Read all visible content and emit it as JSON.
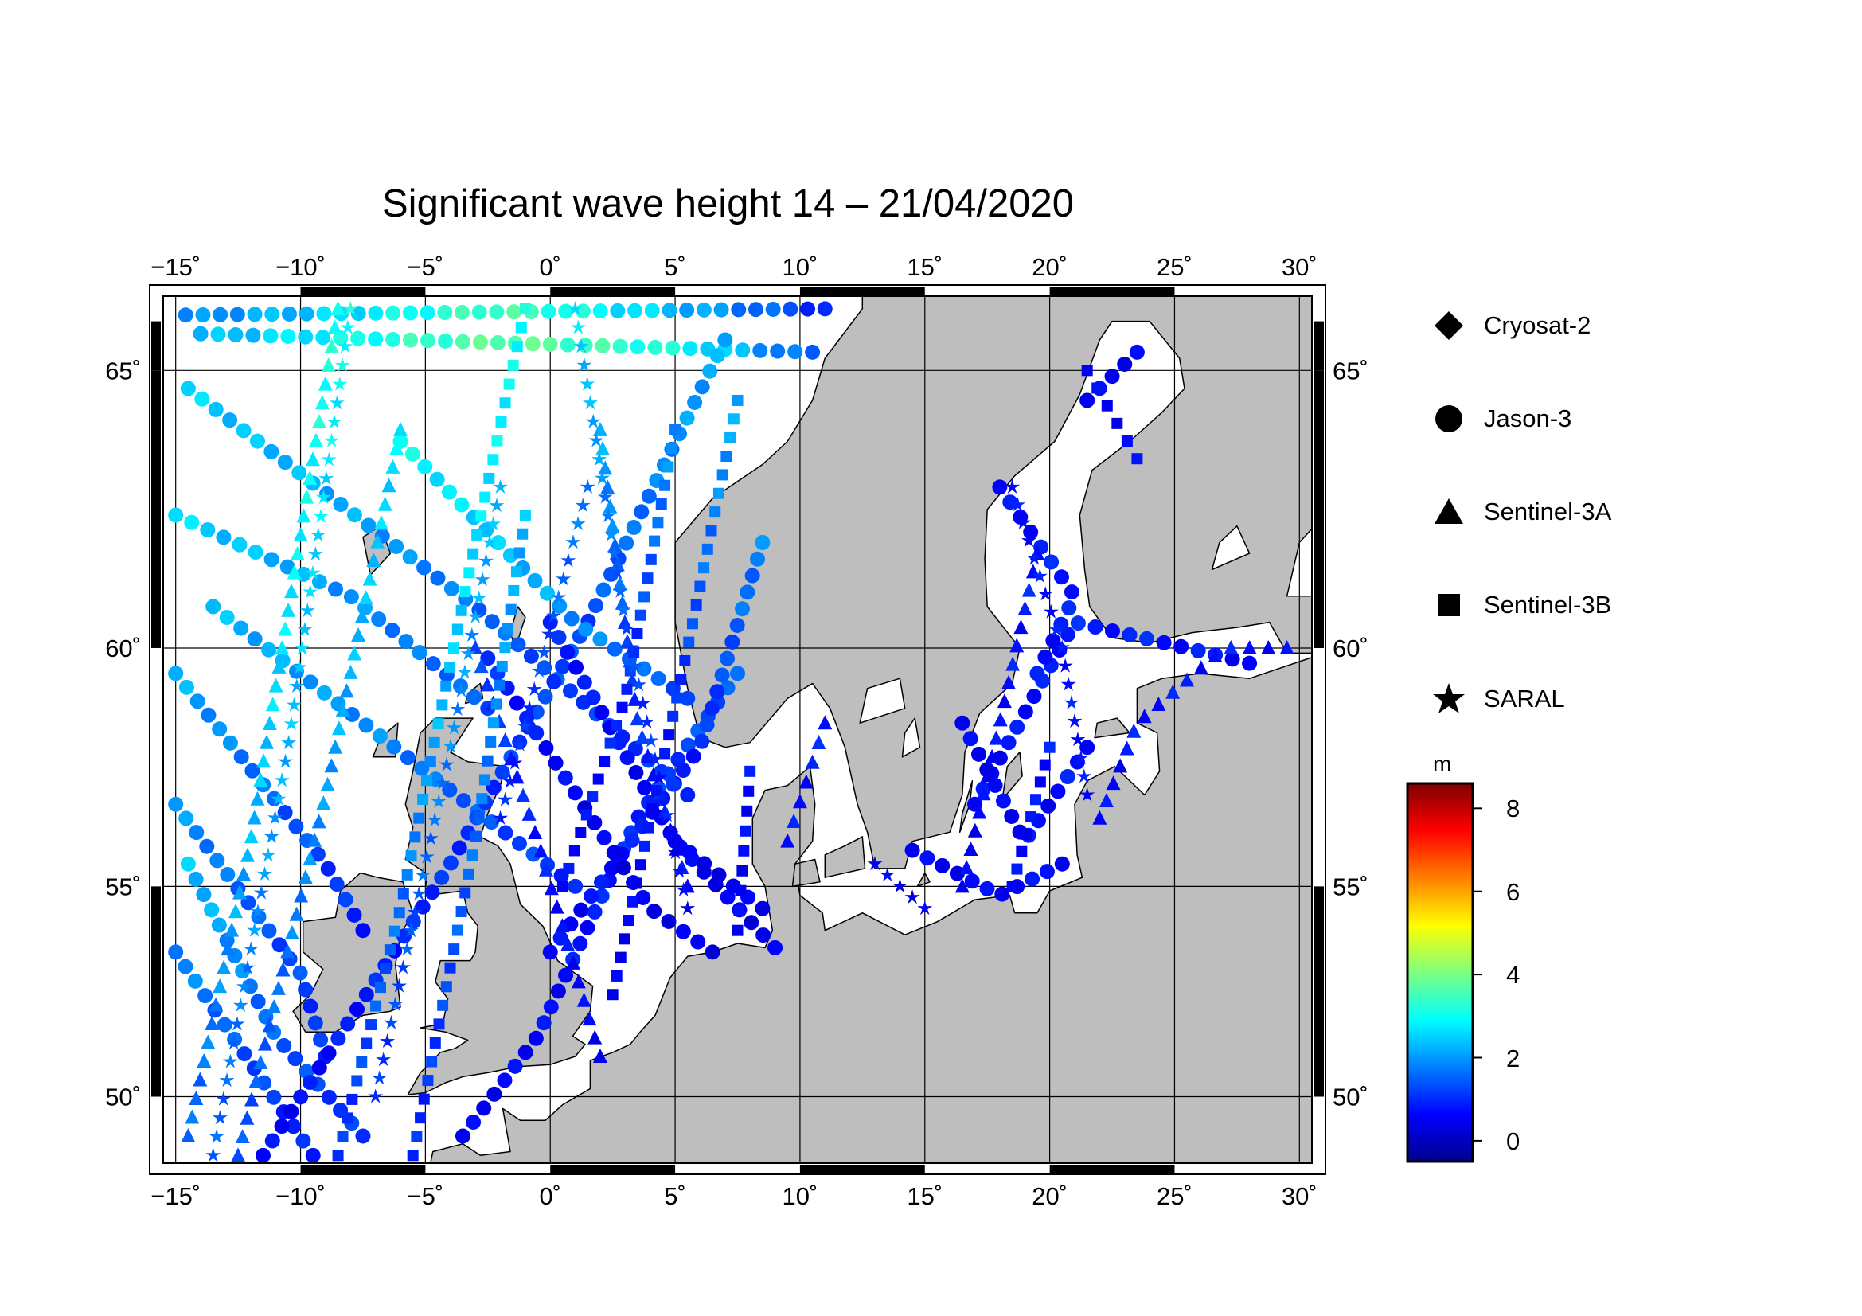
{
  "title": "Significant wave height 14 – 21/04/2020",
  "map": {
    "lon_range": [
      -15.5,
      30.5
    ],
    "lat_range": [
      48.3,
      66.2
    ],
    "lon_ticks": [
      -15,
      -10,
      -5,
      0,
      5,
      10,
      15,
      20,
      25,
      30
    ],
    "lat_ticks": [
      50,
      55,
      60,
      65
    ],
    "lon_labels": [
      "−15˚",
      "−10˚",
      "−5˚",
      "0˚",
      "5˚",
      "10˚",
      "15˚",
      "20˚",
      "25˚",
      "30˚"
    ],
    "lat_labels": [
      "50˚",
      "55˚",
      "60˚",
      "65˚"
    ],
    "grid": true,
    "land_color": "#bebebe",
    "sea_color": "#ffffff"
  },
  "legend": {
    "items": [
      {
        "label": "Cryosat-2",
        "symbol": "diamond"
      },
      {
        "label": "Jason-3",
        "symbol": "circle"
      },
      {
        "label": "Sentinel-3A",
        "symbol": "triangle"
      },
      {
        "label": "Sentinel-3B",
        "symbol": "square"
      },
      {
        "label": "SARAL",
        "symbol": "star"
      }
    ]
  },
  "colorbar": {
    "unit": "m",
    "min": -0.5,
    "max": 8.6,
    "tick_values": [
      0,
      2,
      4,
      6,
      8
    ],
    "tick_labels": [
      "0",
      "2",
      "4",
      "6",
      "8"
    ],
    "colors": [
      "#00008f",
      "#0000ff",
      "#007fff",
      "#00ffff",
      "#7fff7f",
      "#ffff00",
      "#ff7f00",
      "#ff0000",
      "#7f0000"
    ]
  },
  "tracks": [
    {
      "sat": "Jason-3",
      "pts": [
        [
          -14.6,
          65.9
        ],
        [
          11.0,
          66.0
        ]
      ],
      "hs": [
        1.8,
        2.6,
        3.6,
        2.4,
        1.0
      ]
    },
    {
      "sat": "Jason-3",
      "pts": [
        [
          -14.0,
          65.6
        ],
        [
          10.5,
          65.3
        ]
      ],
      "hs": [
        2.2,
        3.0,
        3.8,
        3.2,
        1.4
      ]
    },
    {
      "sat": "Jason-3",
      "pts": [
        [
          -14.5,
          64.7
        ],
        [
          -3.0,
          60.8
        ],
        [
          5.5,
          57.0
        ]
      ],
      "hs": [
        2.5,
        2.1,
        1.4,
        0.9
      ]
    },
    {
      "sat": "Jason-3",
      "pts": [
        [
          -13.5,
          60.8
        ],
        [
          -5.0,
          57.5
        ],
        [
          1.0,
          55.0
        ]
      ],
      "hs": [
        2.3,
        1.8,
        1.0
      ]
    },
    {
      "sat": "Jason-3",
      "pts": [
        [
          -7.5,
          49.0
        ],
        [
          -11.0,
          51.5
        ],
        [
          -14.5,
          55.5
        ]
      ],
      "hs": [
        1.0,
        1.6,
        2.4
      ]
    },
    {
      "sat": "Jason-3",
      "pts": [
        [
          -9.5,
          48.5
        ],
        [
          -15.0,
          53.5
        ]
      ],
      "hs": [
        0.8,
        1.9
      ]
    },
    {
      "sat": "Jason-3",
      "pts": [
        [
          -15.0,
          59.5
        ],
        [
          -9.0,
          55.5
        ],
        [
          -7.5,
          54.0
        ]
      ],
      "hs": [
        2.2,
        1.5,
        0.9
      ]
    },
    {
      "sat": "Jason-3",
      "pts": [
        [
          -15.0,
          56.8
        ],
        [
          -10.0,
          53.0
        ],
        [
          -9.0,
          51.0
        ]
      ],
      "hs": [
        2.0,
        1.4,
        1.0
      ]
    },
    {
      "sat": "Jason-3",
      "pts": [
        [
          -11.5,
          48.5
        ],
        [
          -4.0,
          55.5
        ],
        [
          1.5,
          60.5
        ],
        [
          7.0,
          65.5
        ]
      ],
      "hs": [
        0.6,
        1.0,
        1.3,
        2.2
      ]
    },
    {
      "sat": "Jason-3",
      "pts": [
        [
          -3.5,
          49.0
        ],
        [
          -0.5,
          51.5
        ],
        [
          3.5,
          56.5
        ],
        [
          7.5,
          59.5
        ]
      ],
      "hs": [
        0.5,
        0.7,
        1.0,
        1.5
      ]
    },
    {
      "sat": "Jason-3",
      "pts": [
        [
          0.0,
          53.5
        ],
        [
          6.0,
          58.0
        ],
        [
          8.5,
          62.0
        ]
      ],
      "hs": [
        0.6,
        0.9,
        1.8
      ]
    },
    {
      "sat": "Jason-3",
      "pts": [
        [
          0.0,
          60.5
        ],
        [
          5.0,
          56.0
        ],
        [
          9.0,
          53.6
        ]
      ],
      "hs": [
        0.9,
        0.6,
        0.4
      ]
    },
    {
      "sat": "Jason-3",
      "pts": [
        [
          -2.5,
          59.8
        ],
        [
          4.0,
          54.5
        ],
        [
          6.5,
          53.5
        ]
      ],
      "hs": [
        1.0,
        0.5,
        0.4
      ]
    },
    {
      "sat": "Jason-3",
      "pts": [
        [
          5.0,
          56.0
        ],
        [
          8.5,
          54.5
        ]
      ],
      "hs": [
        0.4,
        0.5
      ]
    },
    {
      "sat": "Jason-3",
      "pts": [
        [
          -15.0,
          62.5
        ],
        [
          -8.0,
          61.0
        ],
        [
          -2.5,
          58.8
        ]
      ],
      "hs": [
        2.6,
        2.0,
        1.4
      ]
    },
    {
      "sat": "Jason-3",
      "pts": [
        [
          -6.0,
          63.8
        ],
        [
          1.0,
          60.5
        ],
        [
          5.5,
          59.0
        ]
      ],
      "hs": [
        3.0,
        2.2,
        1.3
      ]
    },
    {
      "sat": "Jason-3",
      "pts": [
        [
          14.5,
          55.8
        ],
        [
          18.0,
          54.8
        ],
        [
          20.5,
          55.5
        ]
      ],
      "hs": [
        0.5,
        0.6,
        0.7
      ]
    },
    {
      "sat": "Jason-3",
      "pts": [
        [
          17.0,
          56.8
        ],
        [
          21.0,
          60.5
        ],
        [
          25.5,
          60.0
        ],
        [
          28.0,
          59.7
        ]
      ],
      "hs": [
        0.6,
        0.8,
        0.9,
        0.7
      ]
    },
    {
      "sat": "Jason-3",
      "pts": [
        [
          16.5,
          58.5
        ],
        [
          19.0,
          56.0
        ],
        [
          21.5,
          58.0
        ]
      ],
      "hs": [
        0.5,
        0.6,
        0.8
      ]
    },
    {
      "sat": "Jason-3",
      "pts": [
        [
          18.0,
          63.0
        ],
        [
          21.0,
          61.0
        ],
        [
          19.5,
          59.5
        ]
      ],
      "hs": [
        0.6,
        0.9,
        0.7
      ]
    },
    {
      "sat": "Jason-3",
      "pts": [
        [
          21.5,
          64.5
        ],
        [
          23.5,
          65.3
        ]
      ],
      "hs": [
        0.5,
        0.6
      ]
    },
    {
      "sat": "Sentinel-3A",
      "pts": [
        [
          -14.5,
          49.0
        ],
        [
          -12.0,
          56.0
        ],
        [
          -9.5,
          63.5
        ],
        [
          -8.5,
          66.0
        ]
      ],
      "hs": [
        1.5,
        2.2,
        2.8,
        3.2
      ]
    },
    {
      "sat": "Sentinel-3A",
      "pts": [
        [
          -12.5,
          48.5
        ],
        [
          -9.0,
          57.0
        ],
        [
          -6.0,
          64.0
        ]
      ],
      "hs": [
        1.3,
        2.0,
        2.7
      ]
    },
    {
      "sat": "Sentinel-3A",
      "pts": [
        [
          -3.0,
          60.0
        ],
        [
          -0.5,
          56.0
        ],
        [
          2.0,
          51.0
        ]
      ],
      "hs": [
        1.2,
        0.8,
        0.5
      ]
    },
    {
      "sat": "Sentinel-3A",
      "pts": [
        [
          2.0,
          64.0
        ],
        [
          3.5,
          58.5
        ],
        [
          5.5,
          55.0
        ]
      ],
      "hs": [
        2.2,
        1.2,
        0.6
      ]
    },
    {
      "sat": "Sentinel-3A",
      "pts": [
        [
          9.5,
          56.0
        ],
        [
          11.0,
          58.5
        ]
      ],
      "hs": [
        0.7,
        0.9
      ]
    },
    {
      "sat": "Sentinel-3A",
      "pts": [
        [
          16.5,
          55.0
        ],
        [
          18.0,
          58.5
        ],
        [
          19.5,
          61.8
        ]
      ],
      "hs": [
        0.5,
        0.7,
        0.9
      ]
    },
    {
      "sat": "Sentinel-3A",
      "pts": [
        [
          22.0,
          56.5
        ],
        [
          23.5,
          58.5
        ],
        [
          27.0,
          60.0
        ],
        [
          29.5,
          60.0
        ]
      ],
      "hs": [
        0.6,
        0.8,
        0.8,
        0.7
      ]
    },
    {
      "sat": "Sentinel-3B",
      "pts": [
        [
          -8.5,
          48.5
        ],
        [
          -6.0,
          54.5
        ],
        [
          -3.0,
          62.0
        ],
        [
          -1.0,
          66.0
        ]
      ],
      "hs": [
        1.0,
        1.7,
        2.6,
        3.0
      ]
    },
    {
      "sat": "Sentinel-3B",
      "pts": [
        [
          -5.5,
          48.5
        ],
        [
          -3.0,
          56.0
        ],
        [
          -1.0,
          62.5
        ]
      ],
      "hs": [
        0.9,
        1.6,
        2.3
      ]
    },
    {
      "sat": "Sentinel-3B",
      "pts": [
        [
          0.5,
          55.0
        ],
        [
          3.0,
          59.0
        ],
        [
          5.0,
          64.0
        ]
      ],
      "hs": [
        0.6,
        1.0,
        2.0
      ]
    },
    {
      "sat": "Sentinel-3B",
      "pts": [
        [
          2.5,
          52.5
        ],
        [
          5.5,
          60.0
        ],
        [
          7.5,
          64.5
        ]
      ],
      "hs": [
        0.4,
        1.0,
        2.2
      ]
    },
    {
      "sat": "Sentinel-3B",
      "pts": [
        [
          7.5,
          54.0
        ],
        [
          8.0,
          57.5
        ]
      ],
      "hs": [
        0.5,
        0.7
      ]
    },
    {
      "sat": "Sentinel-3B",
      "pts": [
        [
          21.5,
          65.0
        ],
        [
          23.5,
          63.5
        ]
      ],
      "hs": [
        0.5,
        0.6
      ]
    },
    {
      "sat": "Sentinel-3B",
      "pts": [
        [
          18.5,
          55.0
        ],
        [
          20.0,
          58.0
        ]
      ],
      "hs": [
        0.6,
        0.8
      ]
    },
    {
      "sat": "SARAL",
      "pts": [
        [
          -13.5,
          48.5
        ],
        [
          -10.5,
          58.0
        ],
        [
          -8.0,
          66.0
        ]
      ],
      "hs": [
        1.4,
        2.3,
        3.0
      ]
    },
    {
      "sat": "SARAL",
      "pts": [
        [
          -7.0,
          50.0
        ],
        [
          -4.0,
          58.0
        ],
        [
          -2.0,
          63.0
        ]
      ],
      "hs": [
        1.0,
        1.7,
        2.4
      ]
    },
    {
      "sat": "SARAL",
      "pts": [
        [
          1.0,
          66.0
        ],
        [
          3.0,
          60.5
        ],
        [
          5.5,
          54.5
        ]
      ],
      "hs": [
        2.6,
        1.4,
        0.5
      ]
    },
    {
      "sat": "SARAL",
      "pts": [
        [
          -2.0,
          56.5
        ],
        [
          1.5,
          63.0
        ]
      ],
      "hs": [
        0.8,
        1.8
      ]
    },
    {
      "sat": "SARAL",
      "pts": [
        [
          13.0,
          55.5
        ],
        [
          15.0,
          54.5
        ]
      ],
      "hs": [
        0.5,
        0.5
      ]
    },
    {
      "sat": "SARAL",
      "pts": [
        [
          18.5,
          63.0
        ],
        [
          20.5,
          60.0
        ],
        [
          21.5,
          57.0
        ]
      ],
      "hs": [
        0.7,
        0.8,
        0.7
      ]
    }
  ]
}
